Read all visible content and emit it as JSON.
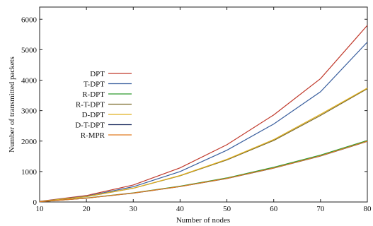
{
  "chart_data": {
    "type": "line",
    "xlabel": "Number of nodes",
    "ylabel": "Number of transmitted packets",
    "x": [
      10,
      20,
      30,
      40,
      50,
      60,
      70,
      80
    ],
    "xticks": [
      "10",
      "20",
      "30",
      "40",
      "50",
      "60",
      "70",
      "80"
    ],
    "yticks": [
      "0",
      "1000",
      "2000",
      "3000",
      "4000",
      "5000",
      "6000"
    ],
    "xlim": [
      10,
      80
    ],
    "ylim": [
      0,
      6400
    ],
    "grid": false,
    "legend_position": "left-middle",
    "series": [
      {
        "name": "DPT",
        "color": "#c0392b",
        "values": [
          20,
          210,
          560,
          1120,
          1880,
          2860,
          4050,
          5800
        ]
      },
      {
        "name": "T-DPT",
        "color": "#3a5f9e",
        "values": [
          18,
          190,
          500,
          1000,
          1700,
          2560,
          3620,
          5250
        ]
      },
      {
        "name": "R-DPT",
        "color": "#2e9b2e",
        "values": [
          10,
          130,
          300,
          520,
          790,
          1140,
          1540,
          2020
        ]
      },
      {
        "name": "R-T-DPT",
        "color": "#7a6a2a",
        "values": [
          16,
          175,
          450,
          860,
          1380,
          2020,
          2840,
          3720
        ]
      },
      {
        "name": "D-DPT",
        "color": "#e0b020",
        "values": [
          16,
          178,
          455,
          870,
          1400,
          2050,
          2880,
          3740
        ]
      },
      {
        "name": "D-T-DPT",
        "color": "#1a2a5e",
        "values": [
          9,
          125,
          290,
          505,
          770,
          1110,
          1510,
          1990
        ]
      },
      {
        "name": "R-MPR",
        "color": "#e07b20",
        "values": [
          9,
          126,
          292,
          508,
          775,
          1115,
          1515,
          1995
        ]
      }
    ]
  }
}
